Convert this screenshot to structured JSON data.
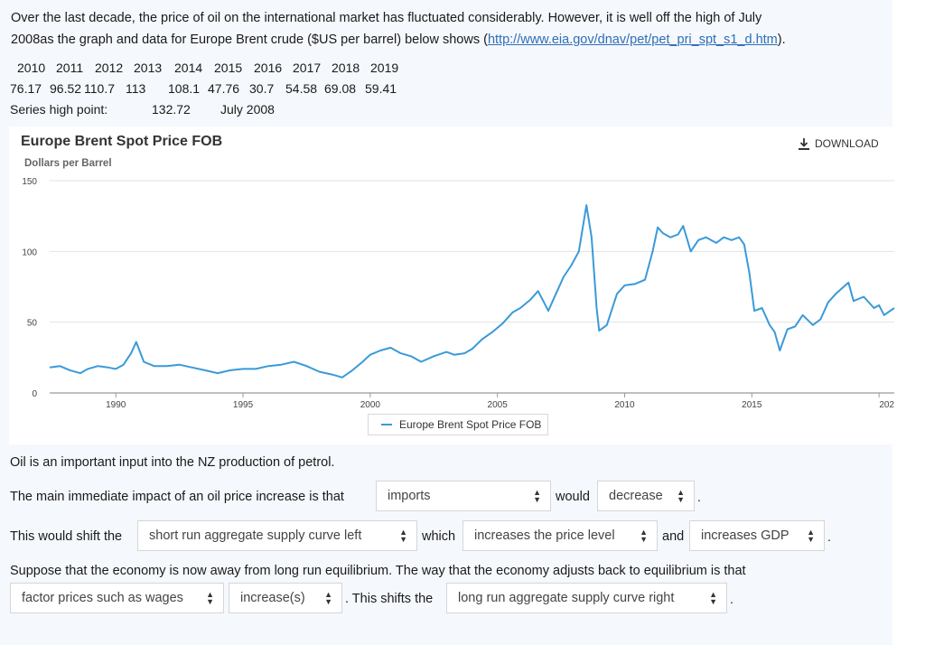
{
  "intro": {
    "line1": "Over the last decade, the price of oil on the international market has fluctuated considerably.  However, it is well off the high of July",
    "line2_prefix": "2008as the graph and data for Europe Brent crude ($US per barrel) below shows (",
    "link_text": "http://www.eia.gov/dnav/pet/pet_pri_spt_s1_d.htm",
    "line2_suffix": ")."
  },
  "data_table": {
    "years": [
      "2010",
      "2011",
      "2012",
      "2013",
      "2014",
      "2015",
      "2016",
      "2017",
      "2018",
      "2019"
    ],
    "values": [
      "76.17",
      "96.52",
      "110.7",
      "113",
      "108.1",
      "47.76",
      "30.7",
      "54.58",
      "69.08",
      "59.41"
    ],
    "high_label": "Series high point:",
    "high_value": "132.72",
    "high_date": "July 2008"
  },
  "chart": {
    "title": "Europe Brent Spot Price FOB",
    "subtitle": "Dollars per Barrel",
    "download_label": "DOWNLOAD",
    "legend_label": "Europe Brent Spot Price FOB",
    "line_color": "#3a9ad9"
  },
  "chart_data": {
    "type": "line",
    "title": "Europe Brent Spot Price FOB",
    "ylabel": "Dollars per Barrel",
    "xlabel": "",
    "ylim": [
      0,
      150
    ],
    "yticks": [
      "0",
      "50",
      "100",
      "150"
    ],
    "xticks": [
      "1990",
      "1995",
      "2000",
      "2005",
      "2010",
      "2015",
      "202"
    ],
    "x_domain": [
      1987.4,
      2020.6
    ],
    "grid": true,
    "legend": "bottom-center",
    "series": [
      {
        "name": "Europe Brent Spot Price FOB",
        "x": [
          1987.4,
          1987.8,
          1988.2,
          1988.6,
          1988.9,
          1989.3,
          1989.7,
          1990.0,
          1990.3,
          1990.6,
          1990.8,
          1991.1,
          1991.5,
          1992.0,
          1992.5,
          1993.0,
          1993.5,
          1994.0,
          1994.5,
          1995.0,
          1995.5,
          1996.0,
          1996.5,
          1997.0,
          1997.5,
          1998.0,
          1998.5,
          1998.9,
          1999.3,
          1999.7,
          2000.0,
          2000.4,
          2000.8,
          2001.2,
          2001.6,
          2002.0,
          2002.5,
          2003.0,
          2003.3,
          2003.7,
          2004.0,
          2004.4,
          2004.8,
          2005.2,
          2005.6,
          2005.9,
          2006.3,
          2006.6,
          2007.0,
          2007.3,
          2007.6,
          2007.9,
          2008.2,
          2008.5,
          2008.7,
          2008.9,
          2009.0,
          2009.3,
          2009.7,
          2010.0,
          2010.4,
          2010.8,
          2011.1,
          2011.3,
          2011.5,
          2011.8,
          2012.1,
          2012.3,
          2012.6,
          2012.9,
          2013.2,
          2013.6,
          2013.9,
          2014.2,
          2014.5,
          2014.7,
          2014.9,
          2015.1,
          2015.4,
          2015.7,
          2015.9,
          2016.1,
          2016.4,
          2016.7,
          2017.0,
          2017.4,
          2017.7,
          2018.0,
          2018.3,
          2018.8,
          2019.0,
          2019.4,
          2019.8,
          2020.0,
          2020.2,
          2020.6
        ],
        "y": [
          18,
          19,
          16,
          14,
          17,
          19,
          18,
          17,
          20,
          28,
          36,
          22,
          19,
          19,
          20,
          18,
          16,
          14,
          16,
          17,
          17,
          19,
          20,
          22,
          19,
          15,
          13,
          11,
          16,
          22,
          27,
          30,
          32,
          28,
          26,
          22,
          26,
          29,
          27,
          28,
          31,
          38,
          43,
          49,
          57,
          60,
          66,
          72,
          58,
          70,
          82,
          90,
          100,
          132.7,
          110,
          60,
          44,
          48,
          70,
          76,
          77,
          80,
          100,
          117,
          113,
          110,
          112,
          118,
          100,
          108,
          110,
          106,
          110,
          108,
          110,
          105,
          85,
          58,
          60,
          48,
          43,
          30,
          45,
          47,
          55,
          48,
          52,
          64,
          70,
          78,
          65,
          68,
          60,
          62,
          55,
          60
        ]
      }
    ]
  },
  "questions": {
    "intro": "Oil is an important input into the NZ production of petrol.",
    "q1_prefix": "The main immediate impact of an oil price increase is that",
    "q1_dd1": "imports",
    "q1_mid": "would",
    "q1_dd2": "decrease",
    "q2_prefix": "This would shift the",
    "q2_dd1": "short run aggregate supply curve left",
    "q2_mid": "which",
    "q2_dd2": "increases the price level",
    "q2_and": "and",
    "q2_dd3": "increases GDP",
    "q3_line": "Suppose that the economy is now away from long run equilibrium.  The way that the economy adjusts back to equilibrium is that",
    "q3_dd1": "factor prices such as wages",
    "q3_dd2": "increase(s)",
    "q3_mid": ". This shifts the",
    "q3_dd3": "long run aggregate supply curve right",
    "dot": "."
  }
}
